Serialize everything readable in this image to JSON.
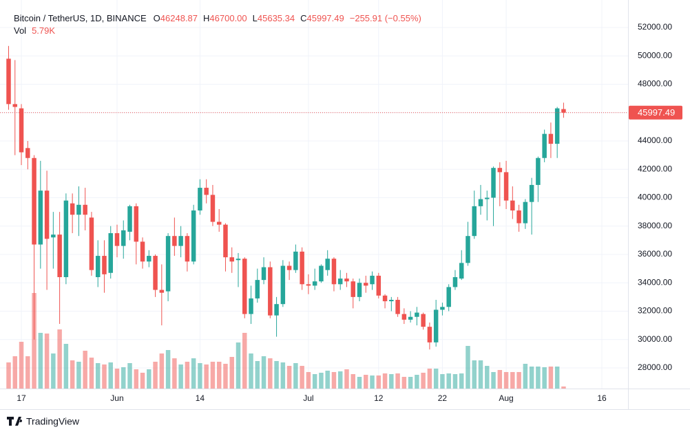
{
  "chart_data": {
    "type": "candlestick",
    "title": "Bitcoin / TetherUS, 1D, BINANCE",
    "legend": {
      "items": [
        {
          "key": "O",
          "value": "46248.87"
        },
        {
          "key": "H",
          "value": "46700.00"
        },
        {
          "key": "L",
          "value": "45635.34"
        },
        {
          "key": "C",
          "value": "45997.49"
        }
      ],
      "change": "−255.91 (−0.55%)",
      "volume_key": "Vol",
      "volume": "5.79K"
    },
    "last_price_label": "45997.49",
    "up_color": "#26a69a",
    "down_color": "#ef5350",
    "open": [
      49800,
      46600,
      46300,
      43500,
      42800,
      36700,
      40500,
      37200,
      37400,
      34400,
      39600,
      38800,
      39500,
      38600,
      34400,
      35900,
      34700,
      37500,
      36600,
      37600,
      39400,
      36900,
      35500,
      35900,
      33500,
      33400,
      37300,
      36600,
      37300,
      35500,
      39100,
      40700,
      40200,
      38300,
      38100,
      35800,
      35600,
      35700,
      31800,
      32900,
      34200,
      35100,
      31700,
      32500,
      35200,
      34900,
      36200,
      33900,
      33800,
      34100,
      34900,
      35700,
      33900,
      34300,
      34100,
      33000,
      34000,
      33900,
      34500,
      33100,
      32700,
      32800,
      31800,
      31400,
      31600,
      31800,
      30900,
      29800,
      32100,
      32300,
      33700,
      34300,
      35400,
      37300,
      39400,
      39900,
      40000,
      42100,
      41800,
      39800,
      39100,
      38200,
      39700,
      40900,
      42800,
      44500,
      43800,
      46248.87
    ],
    "high": [
      50700,
      49700,
      46600,
      44000,
      43000,
      42600,
      41900,
      39000,
      39000,
      40300,
      40300,
      40800,
      40700,
      39000,
      37000,
      37000,
      38000,
      38100,
      38400,
      39500,
      39600,
      37200,
      36300,
      36000,
      35300,
      37500,
      38600,
      38000,
      37500,
      39500,
      41300,
      41300,
      40900,
      39200,
      38200,
      36500,
      36100,
      35800,
      33800,
      35000,
      35800,
      35500,
      33000,
      35600,
      35500,
      36700,
      36500,
      34600,
      35000,
      35300,
      36300,
      35800,
      34900,
      34700,
      34300,
      34300,
      34500,
      34800,
      34700,
      33200,
      33000,
      33000,
      32200,
      32000,
      32300,
      31900,
      31200,
      32800,
      32600,
      33900,
      34900,
      36300,
      38300,
      40500,
      40900,
      40500,
      42200,
      42500,
      42600,
      40800,
      39500,
      39900,
      41400,
      42900,
      44800,
      45300,
      46400,
      46700
    ],
    "low": [
      46200,
      43000,
      42300,
      42000,
      30000,
      35000,
      33500,
      35000,
      31100,
      33900,
      37500,
      37300,
      37700,
      34500,
      33700,
      33300,
      34300,
      35800,
      35700,
      37000,
      35300,
      35000,
      35100,
      33000,
      31000,
      32700,
      35900,
      35800,
      34800,
      35300,
      38800,
      39600,
      38000,
      37600,
      34800,
      34700,
      33700,
      31500,
      31100,
      32600,
      33900,
      31500,
      30200,
      32300,
      34200,
      34700,
      33500,
      33200,
      33500,
      34000,
      34500,
      33400,
      33500,
      33700,
      32200,
      32700,
      33300,
      33500,
      32900,
      32200,
      32000,
      31600,
      31100,
      31200,
      31000,
      30700,
      29300,
      29500,
      31700,
      32000,
      33500,
      34200,
      35200,
      37100,
      38800,
      38400,
      38000,
      39400,
      39200,
      38500,
      37600,
      37800,
      37400,
      39700,
      42500,
      42800,
      42800,
      45635.34
    ],
    "close": [
      46600,
      46400,
      43200,
      42800,
      36700,
      40500,
      37100,
      37400,
      34400,
      39800,
      38800,
      39500,
      38800,
      34900,
      35900,
      34600,
      37500,
      36600,
      37700,
      39400,
      36900,
      35500,
      35900,
      33500,
      33300,
      37300,
      36600,
      37300,
      35500,
      39100,
      40700,
      40200,
      38300,
      38100,
      35800,
      35500,
      35700,
      31800,
      32900,
      34200,
      35100,
      31700,
      32500,
      35200,
      34900,
      36200,
      33900,
      33800,
      34100,
      35200,
      35700,
      33900,
      34300,
      34100,
      33000,
      34000,
      33800,
      34500,
      33100,
      32700,
      32800,
      31800,
      31400,
      31600,
      31900,
      30900,
      29800,
      32100,
      32300,
      33700,
      34400,
      35400,
      37300,
      39400,
      39900,
      40000,
      42100,
      41800,
      39800,
      39100,
      38200,
      39700,
      40900,
      42800,
      44500,
      43800,
      46300,
      45997.49
    ],
    "volume": [
      73340,
      90710,
      131240,
      90710,
      268270,
      156330,
      154400,
      98430,
      165980,
      125450,
      79130,
      75270,
      106150,
      86850,
      71410,
      67550,
      73340,
      55970,
      59830,
      71410,
      54040,
      44390,
      54040,
      75270,
      98430,
      108080,
      84920,
      67550,
      75270,
      84920,
      71410,
      67550,
      75270,
      75270,
      69480,
      88780,
      129310,
      156330,
      98430,
      77200,
      90710,
      84920,
      77200,
      73340,
      63690,
      71410,
      63690,
      46320,
      40530,
      44390,
      50180,
      46320,
      48250,
      54040,
      40530,
      32810,
      38600,
      36670,
      36670,
      42460,
      40530,
      42460,
      32810,
      32810,
      38600,
      44390,
      55970,
      55970,
      40530,
      42460,
      40530,
      42460,
      119660,
      79130,
      79130,
      63690,
      46320,
      52110,
      46320,
      46320,
      46320,
      69480,
      61760,
      61760,
      59830,
      61760,
      61760,
      5790
    ],
    "xlim": [
      -1.35,
      97.1
    ],
    "xticks": [
      {
        "value": 2,
        "label": "17"
      },
      {
        "value": 17,
        "label": "Jun"
      },
      {
        "value": 30,
        "label": "14"
      },
      {
        "value": 47,
        "label": "Jul"
      },
      {
        "value": 58,
        "label": "12"
      },
      {
        "value": 68,
        "label": "22"
      },
      {
        "value": 78,
        "label": "Aug"
      },
      {
        "value": 93,
        "label": "16"
      }
    ],
    "ylim": [
      26545,
      53939
    ],
    "yticks": [
      {
        "value": 28000,
        "label": "28000.00"
      },
      {
        "value": 30000,
        "label": "30000.00"
      },
      {
        "value": 32000,
        "label": "32000.00"
      },
      {
        "value": 34000,
        "label": "34000.00"
      },
      {
        "value": 36000,
        "label": "36000.00"
      },
      {
        "value": 38000,
        "label": "38000.00"
      },
      {
        "value": 40000,
        "label": "40000.00"
      },
      {
        "value": 42000,
        "label": "42000.00"
      },
      {
        "value": 44000,
        "label": "44000.00"
      },
      {
        "value": 46000,
        "label": "46000.00"
      },
      {
        "value": 48000,
        "label": "48000.00"
      },
      {
        "value": 50000,
        "label": "50000.00"
      },
      {
        "value": 52000,
        "label": "52000.00"
      }
    ],
    "grid": true,
    "brand": "TradingView"
  }
}
